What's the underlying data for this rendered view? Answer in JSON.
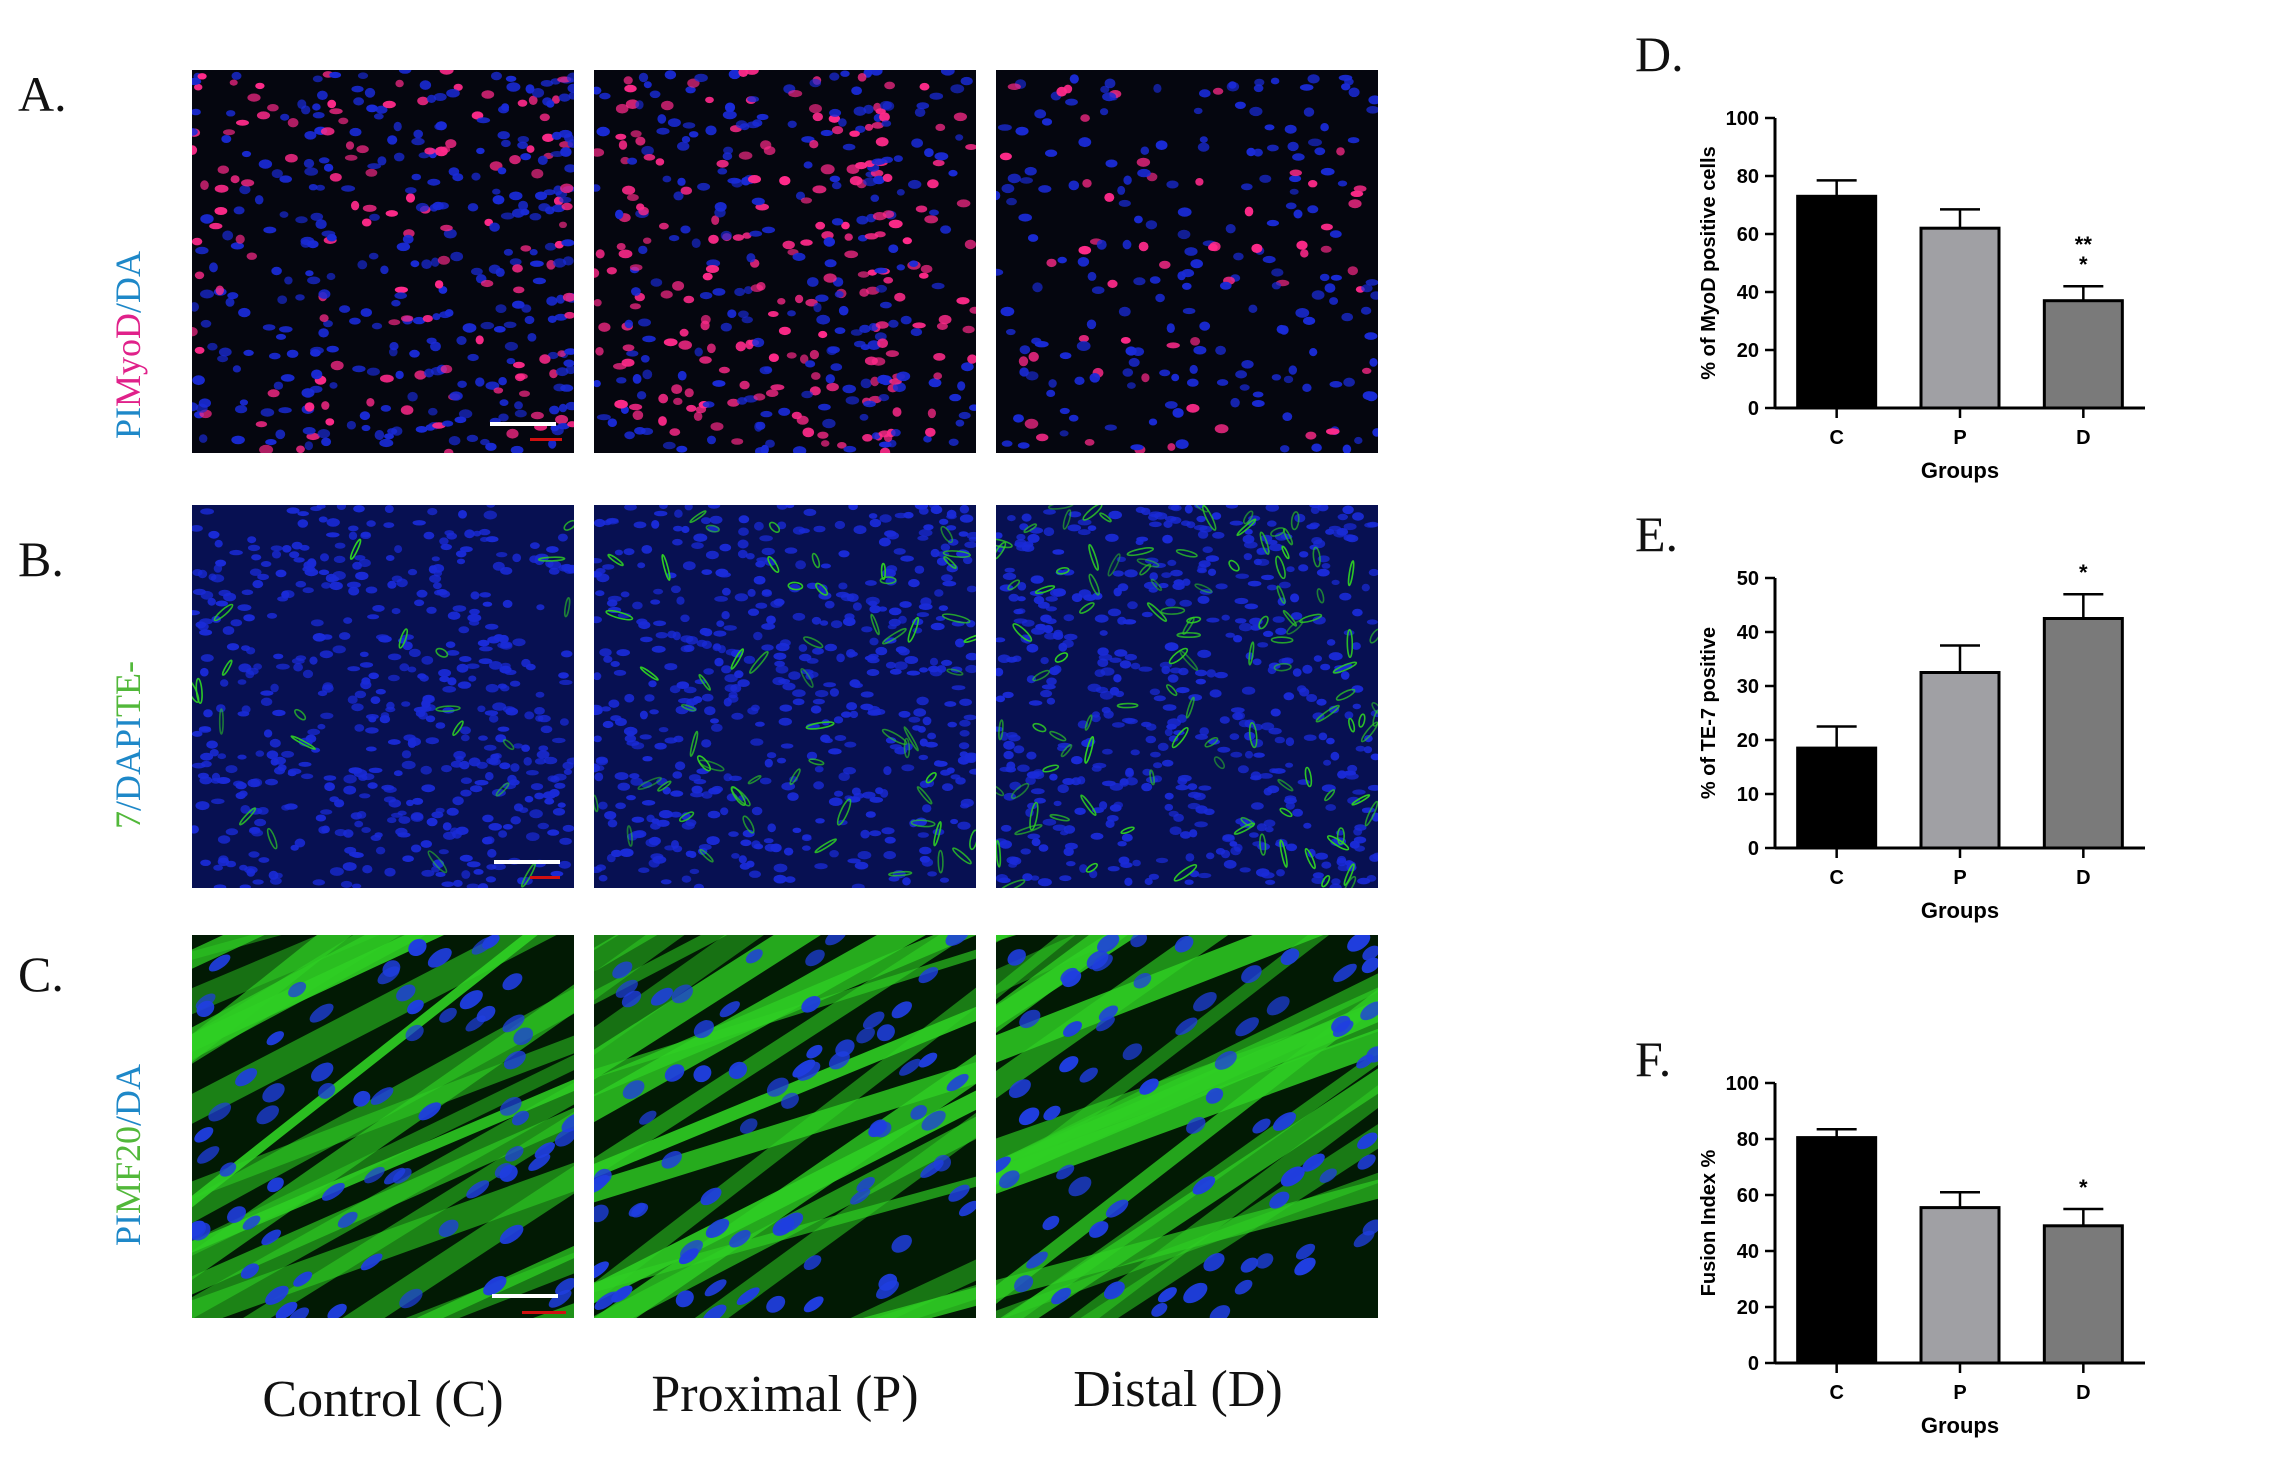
{
  "panels": {
    "A": {
      "letter": "A.",
      "label_parts": [
        {
          "text": "MyoD",
          "color": "#e0218a"
        },
        {
          "text": "/DA",
          "color": "#1e88c8"
        }
      ],
      "label_line2": "PI",
      "label_line2_color": "#1e88c8"
    },
    "B": {
      "letter": "B.",
      "label_parts": [
        {
          "text": "TE-",
          "color": "#52b83a"
        }
      ],
      "label_line2_parts": [
        {
          "text": "7",
          "color": "#52b83a"
        },
        {
          "text": "/DAPI",
          "color": "#1e88c8"
        }
      ]
    },
    "C": {
      "letter": "C.",
      "label_parts": [
        {
          "text": "MF20",
          "color": "#52b83a"
        },
        {
          "text": "/DA",
          "color": "#1e88c8"
        }
      ],
      "label_line2": "PI",
      "label_line2_color": "#1e88c8"
    },
    "D": {
      "letter": "D."
    },
    "E": {
      "letter": "E."
    },
    "F": {
      "letter": "F."
    }
  },
  "columns": [
    "Control (C)",
    "Proximal (P)",
    "Distal (D)"
  ],
  "colors": {
    "nucleus": "#1a2bd8",
    "myod": "#ff2a8a",
    "green": "#2fd024",
    "bar_c": "#000000",
    "bar_p": "#a0a0a4",
    "bar_d": "#7a7a7a"
  },
  "chart_data": [
    {
      "id": "D",
      "type": "bar",
      "categories": [
        "C",
        "P",
        "D"
      ],
      "values": [
        73,
        62,
        37
      ],
      "errors": [
        5.5,
        6.5,
        5
      ],
      "significance": [
        "",
        "",
        "**\n*"
      ],
      "xlabel": "Groups",
      "ylabel": "% of MyoD positive cells",
      "ylim": [
        0,
        100
      ],
      "yticks": [
        0,
        20,
        40,
        60,
        80,
        100
      ],
      "grid": false
    },
    {
      "id": "E",
      "type": "bar",
      "categories": [
        "C",
        "P",
        "D"
      ],
      "values": [
        18.5,
        32.5,
        42.5
      ],
      "errors": [
        4,
        5,
        4.5
      ],
      "significance": [
        "",
        "",
        "*"
      ],
      "xlabel": "Groups",
      "ylabel": "% of TE-7 positive",
      "ylim": [
        0,
        50
      ],
      "yticks": [
        0,
        10,
        20,
        30,
        40,
        50
      ],
      "grid": false
    },
    {
      "id": "F",
      "type": "bar",
      "categories": [
        "C",
        "P",
        "D"
      ],
      "values": [
        80.5,
        55.5,
        49
      ],
      "errors": [
        3,
        5.5,
        6
      ],
      "significance": [
        "",
        "",
        "*"
      ],
      "xlabel": "Groups",
      "ylabel": "Fusion Index %",
      "ylim": [
        0,
        100
      ],
      "yticks": [
        0,
        20,
        40,
        60,
        80,
        100
      ],
      "grid": false
    }
  ]
}
